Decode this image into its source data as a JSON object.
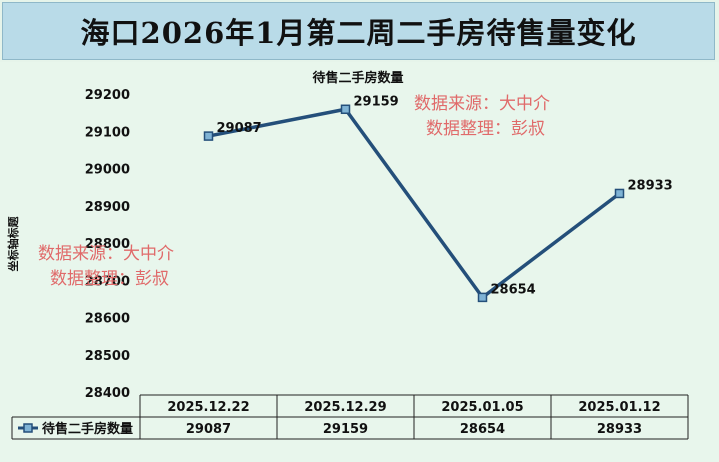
{
  "title": "海口2026年1月第二周二手房待售量变化",
  "watermark": {
    "line1": "数据来源：大中介",
    "line2": "数据整理：彭叔"
  },
  "colors": {
    "title_bg": "#b9dbe8",
    "series": "#244f7a",
    "marker_fill": "#7fb3d5",
    "watermark": "#e06a6a"
  },
  "legend_icon": "line-with-square-marker",
  "chart_data": {
    "type": "line",
    "title": "待售二手房数量",
    "ylabel": "坐标轴标题",
    "xlabel": "",
    "ylim": [
      28400,
      29200
    ],
    "y_ticks": [
      29200,
      29100,
      29000,
      28900,
      28800,
      28700,
      28600,
      28500,
      28400
    ],
    "categories": [
      "2025.12.22",
      "2025.12.29",
      "2025.01.05",
      "2025.01.12"
    ],
    "series": [
      {
        "name": "待售二手房数量",
        "values": [
          29087,
          29159,
          28654,
          28933
        ],
        "labels": [
          "29087",
          "29159",
          "28654",
          "28933"
        ]
      }
    ],
    "data_table": true,
    "grid": false,
    "legend": "in data table"
  }
}
